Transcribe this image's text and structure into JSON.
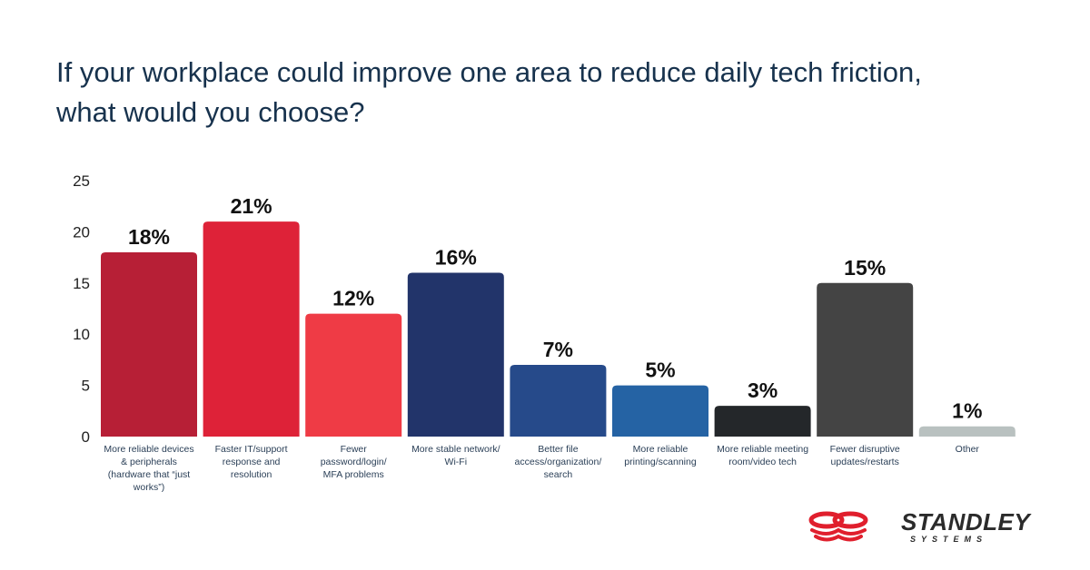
{
  "chart_data": {
    "type": "bar",
    "title": "If your workplace could improve one area to reduce daily tech friction, what would you choose?",
    "xlabel": "",
    "ylabel": "",
    "ylim": [
      0,
      25
    ],
    "yticks": [
      0,
      5,
      10,
      15,
      20,
      25
    ],
    "grid": false,
    "legend": "none",
    "categories": [
      "More reliable devices & peripherals (hardware that “just works”)",
      "Faster IT/support response and resolution",
      "Fewer password/login/ MFA problems",
      "More stable network/ Wi-Fi",
      "Better file access/organization/ search",
      "More reliable printing/scanning",
      "More reliable meeting room/video tech",
      "Fewer disruptive updates/restarts",
      "Other"
    ],
    "category_lines": [
      [
        "More reliable devices",
        "& peripherals",
        "(hardware that “just",
        "works”)"
      ],
      [
        "Faster IT/support",
        "response and",
        "resolution"
      ],
      [
        "Fewer",
        "password/login/",
        "MFA problems"
      ],
      [
        "More stable network/",
        "Wi-Fi"
      ],
      [
        "Better file",
        "access/organization/",
        "search"
      ],
      [
        "More reliable",
        "printing/scanning"
      ],
      [
        "More reliable meeting",
        "room/video tech"
      ],
      [
        "Fewer disruptive",
        "updates/restarts"
      ],
      [
        "Other"
      ]
    ],
    "values": [
      18,
      21,
      12,
      16,
      7,
      5,
      3,
      15,
      1
    ],
    "data_labels": [
      "18%",
      "21%",
      "12%",
      "16%",
      "7%",
      "5%",
      "3%",
      "15%",
      "1%"
    ],
    "colors": [
      "#b71f36",
      "#de2238",
      "#ef3b45",
      "#22346a",
      "#264a8a",
      "#2563a4",
      "#24272a",
      "#444444",
      "#b9c1c0"
    ]
  },
  "brand": {
    "name": "STANDLEY",
    "subtitle": "SYSTEMS",
    "logo_icon": "infinity-stack-icon",
    "accent": "#e01f2d"
  },
  "title_color": "#17324d"
}
